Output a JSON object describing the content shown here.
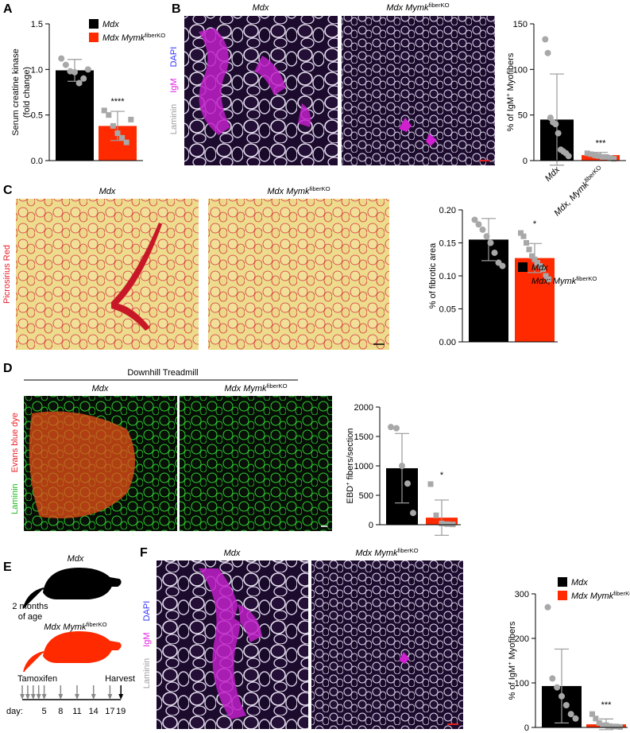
{
  "panels": {
    "labels": [
      "A",
      "B",
      "C",
      "D",
      "E",
      "F"
    ]
  },
  "images": {
    "B": {
      "titles": [
        [
          "Mdx"
        ],
        [
          "Mdx Mymk",
          {
            "sup": "fiberKO"
          }
        ]
      ],
      "stains": [
        "Laminin",
        "IgM",
        "DAPI"
      ],
      "stain_colors": [
        "#a0a0a0",
        "#e020e0",
        "#3030ff"
      ]
    },
    "C": {
      "titles": [
        [
          "Mdx"
        ],
        [
          "Mdx  Mymk",
          {
            "sup": "fiberKO"
          }
        ]
      ],
      "stains": [
        "Picrosirius Red"
      ],
      "stain_colors": [
        "#e8202a"
      ]
    },
    "D": {
      "header": "Downhill Treadmill",
      "titles": [
        [
          "Mdx"
        ],
        [
          "Mdx Mymk",
          {
            "sup": "fiberKO"
          }
        ]
      ],
      "stains": [
        "Laminin",
        "Evans blue dye"
      ],
      "stain_colors": [
        "#22bb22",
        "#e8202a"
      ]
    },
    "F": {
      "titles": [
        [
          "Mdx"
        ],
        [
          "Mdx Mymk",
          {
            "sup": "fiberKO"
          }
        ]
      ],
      "stains": [
        "Laminin",
        "IgM",
        "DAPI"
      ],
      "stain_colors": [
        "#a0a0a0",
        "#e020e0",
        "#3030ff"
      ]
    }
  },
  "timeline": {
    "strain_a": "Mdx",
    "age": [
      "2 months",
      "of age"
    ],
    "strain_b": [
      "Mdx Mymk",
      {
        "sup": "fiberKO"
      }
    ],
    "drug": "Tamoxifen",
    "end": "Harvest",
    "day_label": "day:",
    "days": [
      5,
      8,
      11,
      14,
      17,
      19
    ]
  },
  "chart_data": [
    {
      "type": "bar",
      "categories": [
        null,
        null
      ],
      "legend": [
        [
          "Mdx"
        ],
        [
          "Mdx Mymk",
          {
            "sup": "fiberKO"
          }
        ]
      ],
      "values": [
        0.99,
        0.38
      ],
      "errors": [
        0.12,
        0.16
      ],
      "colors": [
        "#000000",
        "#ff2a00"
      ],
      "points": [
        [
          1.12,
          1.05,
          0.98,
          0.97,
          0.85,
          0.9,
          1.0
        ],
        [
          0.55,
          0.5,
          0.38,
          0.3,
          0.25,
          0.2,
          0.45
        ]
      ],
      "annotation": "****",
      "ylabel": [
        [
          "Serum creatine kinase"
        ],
        [
          "(fold change)"
        ]
      ],
      "ylim": [
        0,
        1.5
      ],
      "yticks": [
        {
          "value": 0,
          "label": "0.0"
        },
        0.5,
        {
          "value": 1,
          "label": "1.0"
        },
        1.5
      ]
    },
    {
      "type": "bar",
      "categories": [
        [
          "Mdx"
        ],
        [
          "Mdx, Mymk",
          {
            "sup": "fiberKO"
          }
        ]
      ],
      "values": [
        45,
        6
      ],
      "errors": [
        50,
        3
      ],
      "colors": [
        "#000000",
        "#ff2a00"
      ],
      "points": [
        [
          133,
          118,
          47,
          42,
          40,
          30,
          12,
          10,
          8,
          5
        ],
        [
          8,
          7,
          6,
          5,
          4,
          4,
          3,
          2
        ]
      ],
      "annotation": "***",
      "ylabel": [
        [
          "% of IgM",
          {
            "sup": "+"
          },
          " Myofibers"
        ]
      ],
      "ylim": [
        0,
        150
      ],
      "yticks": [
        0,
        50,
        100,
        150
      ]
    },
    {
      "type": "bar",
      "categories": [
        null,
        null
      ],
      "legend": [
        [
          "Mdx"
        ],
        [
          "Mdx; Mymk",
          {
            "sup": "fiberKO"
          }
        ]
      ],
      "values": [
        0.155,
        0.127
      ],
      "errors": [
        0.032,
        0.022
      ],
      "colors": [
        "#000000",
        "#ff2a00"
      ],
      "points": [
        [
          0.185,
          0.178,
          0.17,
          0.16,
          0.15,
          0.135,
          0.12,
          0.115
        ],
        [
          0.165,
          0.16,
          0.15,
          0.14,
          0.13,
          0.125,
          0.12,
          0.115,
          0.11,
          0.1,
          0.095
        ]
      ],
      "annotation": "*",
      "ylabel": [
        [
          "% of fibrotic area"
        ]
      ],
      "ylim": [
        0,
        0.2
      ],
      "yticks": [
        {
          "value": 0,
          "label": "0.00"
        },
        0.05,
        {
          "value": 0.1,
          "label": "0.10"
        },
        0.15,
        {
          "value": 0.2,
          "label": "0.20"
        }
      ]
    },
    {
      "type": "bar",
      "categories": [
        null,
        null
      ],
      "values": [
        960,
        120
      ],
      "errors": [
        590,
        300
      ],
      "colors": [
        "#000000",
        "#ff2a00"
      ],
      "points": [
        [
          1660,
          1640,
          1000,
          700,
          200
        ],
        [
          690,
          160,
          20,
          10,
          5
        ]
      ],
      "annotation": "*",
      "ylabel": [
        [
          "EBD",
          {
            "sup": "+"
          },
          " fibers/section"
        ]
      ],
      "ylim": [
        0,
        2000
      ],
      "yticks": [
        0,
        500,
        1000,
        1500,
        2000
      ]
    },
    {
      "type": "bar",
      "categories": [
        null,
        null
      ],
      "legend": [
        [
          "Mdx"
        ],
        [
          "Mdx Mymk",
          {
            "sup": "fiberKO"
          }
        ]
      ],
      "values": [
        93,
        7
      ],
      "errors": [
        83,
        12
      ],
      "colors": [
        "#000000",
        "#ff2a00"
      ],
      "points": [
        [
          270,
          110,
          90,
          70,
          50,
          30,
          20
        ],
        [
          30,
          20,
          10,
          5,
          5,
          3,
          2,
          2,
          1
        ]
      ],
      "annotation": "***",
      "ylabel": [
        [
          "% of IgM",
          {
            "sup": "+"
          },
          " Myofibers"
        ]
      ],
      "ylim": [
        0,
        300
      ],
      "yticks": [
        0,
        100,
        200,
        300
      ]
    }
  ]
}
